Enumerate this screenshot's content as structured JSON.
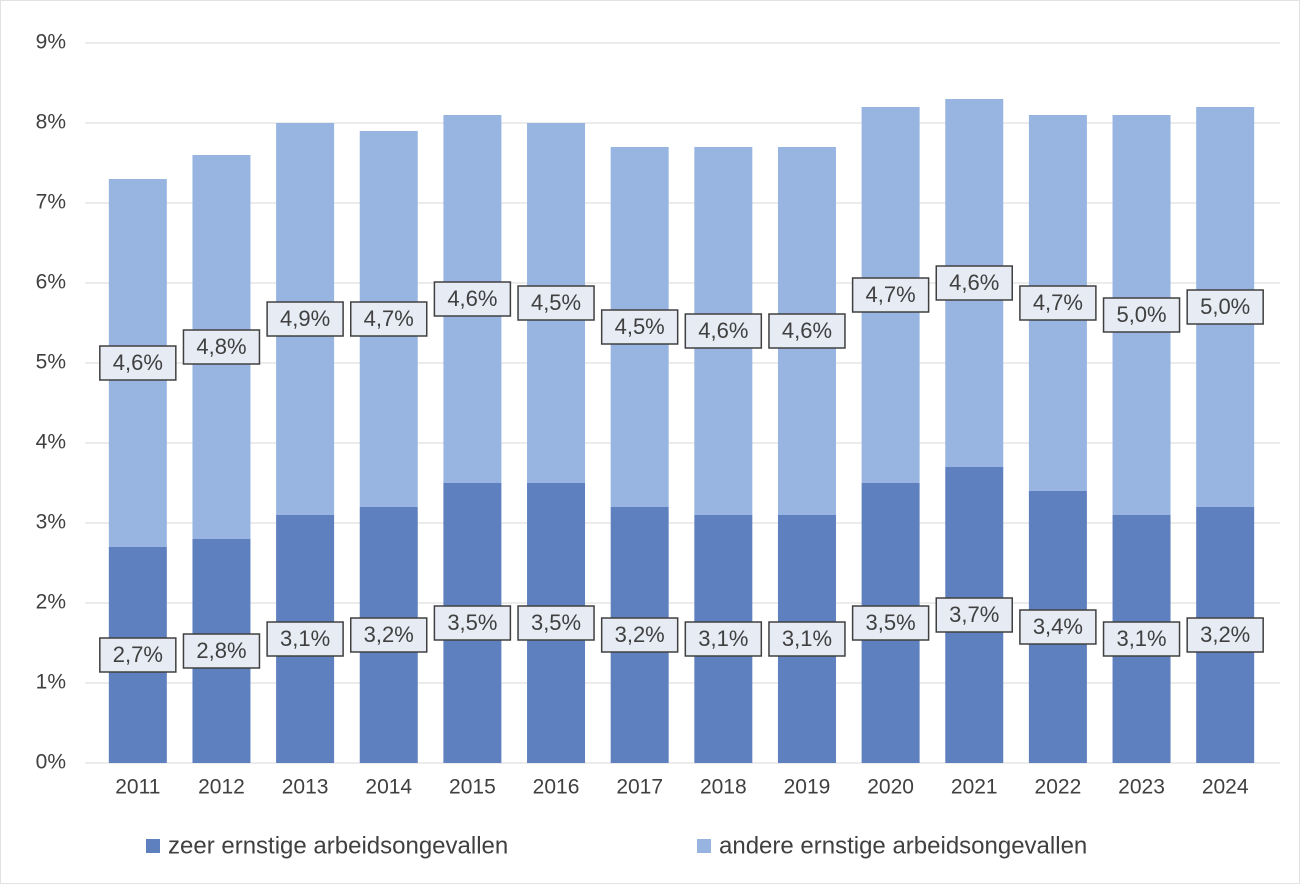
{
  "chart_data": {
    "type": "stacked_bar",
    "categories": [
      "2011",
      "2012",
      "2013",
      "2014",
      "2015",
      "2016",
      "2017",
      "2018",
      "2019",
      "2020",
      "2021",
      "2022",
      "2023",
      "2024"
    ],
    "series": [
      {
        "name": "zeer ernstige arbeidsongevallen",
        "color": "#5f80bf",
        "values": [
          2.7,
          2.8,
          3.1,
          3.2,
          3.5,
          3.5,
          3.2,
          3.1,
          3.1,
          3.5,
          3.7,
          3.4,
          3.1,
          3.2
        ],
        "value_labels": [
          "2,7%",
          "2,8%",
          "3,1%",
          "3,2%",
          "3,5%",
          "3,5%",
          "3,2%",
          "3,1%",
          "3,1%",
          "3,5%",
          "3,7%",
          "3,4%",
          "3,1%",
          "3,2%"
        ]
      },
      {
        "name": "andere ernstige arbeidsongevallen",
        "color": "#98b5e1",
        "values": [
          4.6,
          4.8,
          4.9,
          4.7,
          4.6,
          4.5,
          4.5,
          4.6,
          4.6,
          4.7,
          4.6,
          4.7,
          5.0,
          5.0
        ],
        "value_labels": [
          "4,6%",
          "4,8%",
          "4,9%",
          "4,7%",
          "4,6%",
          "4,5%",
          "4,5%",
          "4,6%",
          "4,6%",
          "4,7%",
          "4,6%",
          "4,7%",
          "5,0%",
          "5,0%"
        ]
      }
    ],
    "ylim": [
      0,
      9
    ],
    "yticks": [
      {
        "value": 0,
        "label": "0%"
      },
      {
        "value": 1,
        "label": "1%"
      },
      {
        "value": 2,
        "label": "2%"
      },
      {
        "value": 3,
        "label": "3%"
      },
      {
        "value": 4,
        "label": "4%"
      },
      {
        "value": 5,
        "label": "5%"
      },
      {
        "value": 6,
        "label": "6%"
      },
      {
        "value": 7,
        "label": "7%"
      },
      {
        "value": 8,
        "label": "8%"
      },
      {
        "value": 9,
        "label": "9%"
      }
    ],
    "grid": true,
    "legend": "bottom"
  }
}
